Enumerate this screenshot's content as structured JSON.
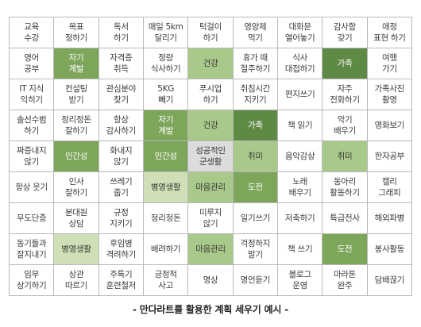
{
  "palette": {
    "light_green": "#cfe0b6",
    "mid_green": "#a9c98a",
    "green": "#7ea65b",
    "dark_green": "#5f8a45",
    "center_gray": "#dcdcdc",
    "grid_line": "#b9b9b9"
  },
  "mandalart": {
    "rows": [
      [
        {
          "text": "교육\n수강",
          "fill": ""
        },
        {
          "text": "목표\n정하기",
          "fill": ""
        },
        {
          "text": "독서\n하기",
          "fill": ""
        },
        {
          "text": "매일 5km\n달리기",
          "fill": ""
        },
        {
          "text": "턱걸이\n하기",
          "fill": ""
        },
        {
          "text": "영양제\n먹기",
          "fill": ""
        },
        {
          "text": "대화문\n열어놓기",
          "fill": ""
        },
        {
          "text": "감사함\n갖기",
          "fill": ""
        },
        {
          "text": "애정\n표현 하기",
          "fill": ""
        }
      ],
      [
        {
          "text": "영어\n공부",
          "fill": ""
        },
        {
          "text": "자기\n계발",
          "fill": "green"
        },
        {
          "text": "자격증\n취득",
          "fill": ""
        },
        {
          "text": "정량\n식사하기",
          "fill": ""
        },
        {
          "text": "건강",
          "fill": "mid_green"
        },
        {
          "text": "휴가 때\n절주하기",
          "fill": ""
        },
        {
          "text": "식사\n대접하기",
          "fill": ""
        },
        {
          "text": "가족",
          "fill": "dark_green"
        },
        {
          "text": "여행\n가기",
          "fill": ""
        }
      ],
      [
        {
          "text": "IT 지식\n익히기",
          "fill": ""
        },
        {
          "text": "컨설팅\n받기",
          "fill": ""
        },
        {
          "text": "관심분야\n찾기",
          "fill": ""
        },
        {
          "text": "5KG\n빼기",
          "fill": ""
        },
        {
          "text": "푸시업\n하기",
          "fill": ""
        },
        {
          "text": "취침시간\n지키기",
          "fill": ""
        },
        {
          "text": "편지쓰기",
          "fill": ""
        },
        {
          "text": "자주\n전화하기",
          "fill": ""
        },
        {
          "text": "가족사진\n촬영",
          "fill": ""
        }
      ],
      [
        {
          "text": "솔선수범\n하기",
          "fill": ""
        },
        {
          "text": "정리정돈\n잘하기",
          "fill": ""
        },
        {
          "text": "항상\n감사하기",
          "fill": ""
        },
        {
          "text": "자기\n계발",
          "fill": "green"
        },
        {
          "text": "건강",
          "fill": "mid_green"
        },
        {
          "text": "가족",
          "fill": "dark_green"
        },
        {
          "text": "책 읽기",
          "fill": ""
        },
        {
          "text": "악기\n배우기",
          "fill": ""
        },
        {
          "text": "영화보기",
          "fill": ""
        }
      ],
      [
        {
          "text": "짜증내지\n않기",
          "fill": ""
        },
        {
          "text": "인간성",
          "fill": "green"
        },
        {
          "text": "화내지\n않기",
          "fill": ""
        },
        {
          "text": "인간성",
          "fill": "green"
        },
        {
          "text": "성공적인\n군생활",
          "fill": "center_gray"
        },
        {
          "text": "취미",
          "fill": "mid_green"
        },
        {
          "text": "음악감상",
          "fill": ""
        },
        {
          "text": "취미",
          "fill": "mid_green"
        },
        {
          "text": "한자공부",
          "fill": ""
        }
      ],
      [
        {
          "text": "항상 웃기",
          "fill": ""
        },
        {
          "text": "인사\n잘하기",
          "fill": ""
        },
        {
          "text": "쓰레기\n줍기",
          "fill": ""
        },
        {
          "text": "병영생활",
          "fill": "light_green"
        },
        {
          "text": "마음관리",
          "fill": "mid_green"
        },
        {
          "text": "도전",
          "fill": "green"
        },
        {
          "text": "노래\n배우기",
          "fill": ""
        },
        {
          "text": "동아리\n활동하기",
          "fill": ""
        },
        {
          "text": "캘리\n그래피",
          "fill": ""
        }
      ],
      [
        {
          "text": "무도단증",
          "fill": ""
        },
        {
          "text": "분대원\n상담",
          "fill": ""
        },
        {
          "text": "규정\n지키기",
          "fill": ""
        },
        {
          "text": "정리정돈",
          "fill": ""
        },
        {
          "text": "미루지\n않기",
          "fill": ""
        },
        {
          "text": "일기쓰기",
          "fill": ""
        },
        {
          "text": "저축하기",
          "fill": ""
        },
        {
          "text": "특급전사",
          "fill": ""
        },
        {
          "text": "해외파병",
          "fill": ""
        }
      ],
      [
        {
          "text": "동기들과\n잘지내기",
          "fill": ""
        },
        {
          "text": "병영생활",
          "fill": "light_green"
        },
        {
          "text": "후임병\n격려하기",
          "fill": ""
        },
        {
          "text": "배려하기",
          "fill": ""
        },
        {
          "text": "마음관리",
          "fill": "mid_green"
        },
        {
          "text": "걱정하지\n말기",
          "fill": ""
        },
        {
          "text": "책 쓰기",
          "fill": ""
        },
        {
          "text": "도전",
          "fill": "green"
        },
        {
          "text": "봉사활동",
          "fill": ""
        }
      ],
      [
        {
          "text": "임무\n상기하기",
          "fill": ""
        },
        {
          "text": "상관\n따르기",
          "fill": ""
        },
        {
          "text": "주특기\n훈련철저",
          "fill": ""
        },
        {
          "text": "긍정적\n사고",
          "fill": ""
        },
        {
          "text": "명상",
          "fill": ""
        },
        {
          "text": "명언듣기",
          "fill": ""
        },
        {
          "text": "블로그\n운영",
          "fill": ""
        },
        {
          "text": "마라톤\n완주",
          "fill": ""
        },
        {
          "text": "담배끊기",
          "fill": ""
        }
      ]
    ]
  },
  "caption": "- 만다라트를 활용한 계획 세우기 예시 -"
}
